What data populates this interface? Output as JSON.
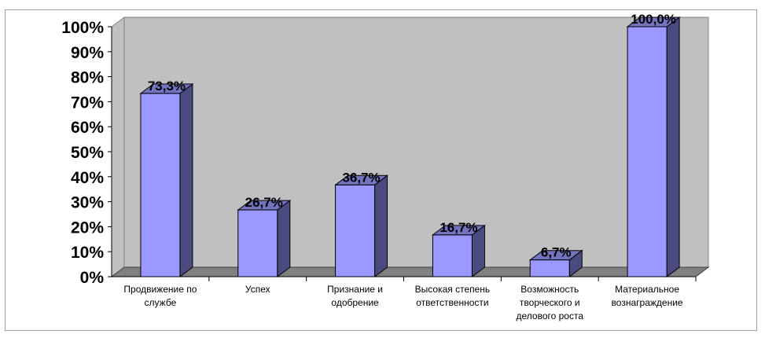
{
  "chart_data": {
    "type": "bar",
    "title": "",
    "xlabel": "",
    "ylabel": "",
    "ylim": [
      0,
      100
    ],
    "yticks": [
      "0%",
      "10%",
      "20%",
      "30%",
      "40%",
      "50%",
      "60%",
      "70%",
      "80%",
      "90%",
      "100%"
    ],
    "categories": [
      [
        "Продвижение по",
        "службе"
      ],
      [
        "Успех"
      ],
      [
        "Признание и",
        "одобрение"
      ],
      [
        "Высокая степень",
        "ответственности"
      ],
      [
        "Возможность",
        "творческого и",
        "делового роста"
      ],
      [
        "Материальное",
        "вознаграждение"
      ]
    ],
    "values": [
      73.3,
      26.7,
      36.7,
      16.7,
      6.7,
      100.0
    ],
    "data_labels": [
      "73,3%",
      "26,7%",
      "36,7%",
      "16,7%",
      "6,7%",
      "100,0%"
    ],
    "legend": "none",
    "grid": false,
    "colors": {
      "plot_back": "#c0c0c0",
      "floor": "#808080",
      "bar_front": "#9999ff",
      "bar_side": "#4a4a80",
      "bar_top": "#7373c0",
      "outline": "#000000"
    }
  }
}
